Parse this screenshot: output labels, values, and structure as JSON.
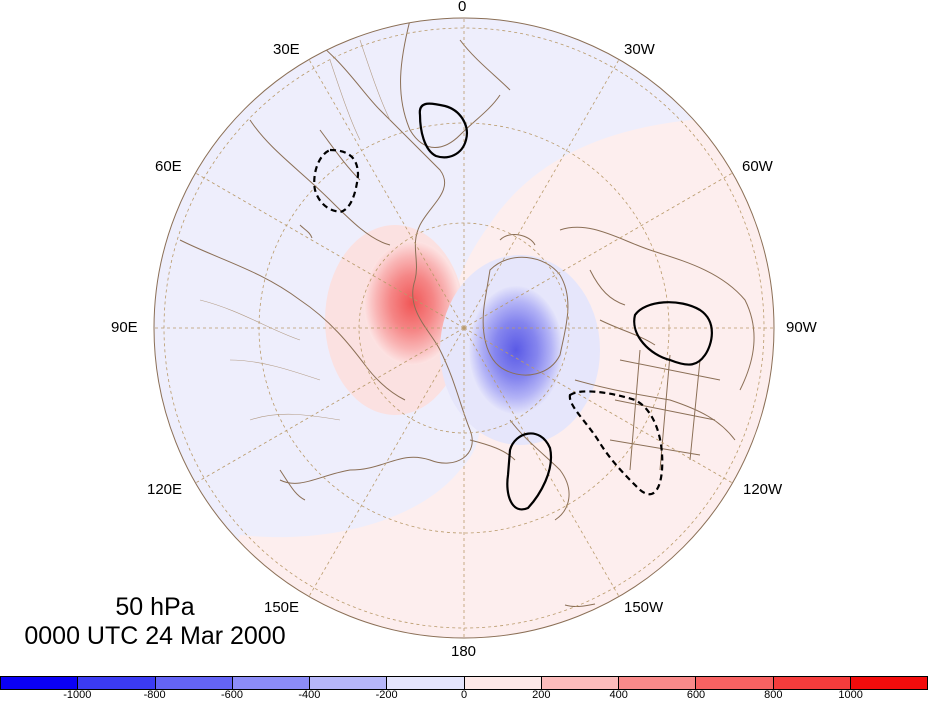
{
  "map": {
    "projection": "north-polar-stereographic",
    "longitude_labels": [
      "0",
      "30W",
      "60W",
      "90W",
      "120W",
      "150W",
      "180",
      "150E",
      "120E",
      "90E",
      "60E",
      "30E"
    ],
    "contour_lines": "solid = positive, dashed = negative",
    "colors": {
      "land_outline": "#8b6f56",
      "graticule": "#b99a6a",
      "background_negative": "#eeeefc",
      "background_positive": "#fdeeee"
    }
  },
  "caption": {
    "level": "50 hPa",
    "time": "0000 UTC 24 Mar 2000"
  },
  "colorbar": {
    "colors": [
      "#0b00f5",
      "#3b3bf3",
      "#6464f5",
      "#8c8cf7",
      "#b7b7fa",
      "#e4e4fc",
      "#fde8e8",
      "#fcbcbc",
      "#fa8a8a",
      "#f76262",
      "#f53c3c",
      "#f20c0c"
    ],
    "labels": [
      "-1000",
      "-800",
      "-600",
      "-400",
      "-200",
      "0",
      "200",
      "400",
      "600",
      "800",
      "1000"
    ]
  }
}
